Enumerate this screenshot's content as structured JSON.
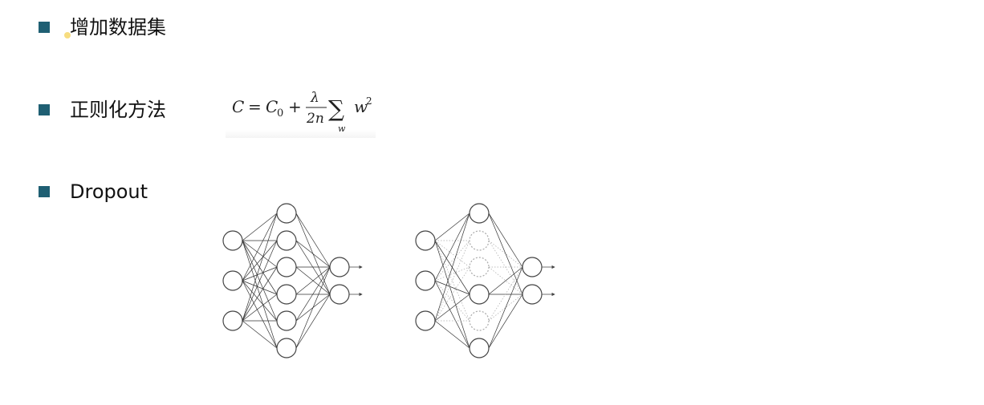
{
  "bullets": [
    {
      "label": "增加数据集"
    },
    {
      "label": "正则化方法"
    },
    {
      "label": "Dropout"
    }
  ],
  "formula": {
    "lhs": "C",
    "equals": "=",
    "c0_base": "C",
    "c0_sub": "0",
    "plus": "+",
    "frac_num": "λ",
    "frac_den": "2n",
    "sum_symbol": "∑",
    "sum_sub": "w",
    "term_base": "w",
    "term_sup": "2"
  },
  "colors": {
    "bullet": "#1f5f73",
    "node_stroke": "#444444",
    "dropped": "#aaaaaa"
  },
  "networks": {
    "layers": [
      3,
      6,
      2
    ],
    "dropped_hidden_nodes": [
      1,
      2,
      4
    ]
  }
}
